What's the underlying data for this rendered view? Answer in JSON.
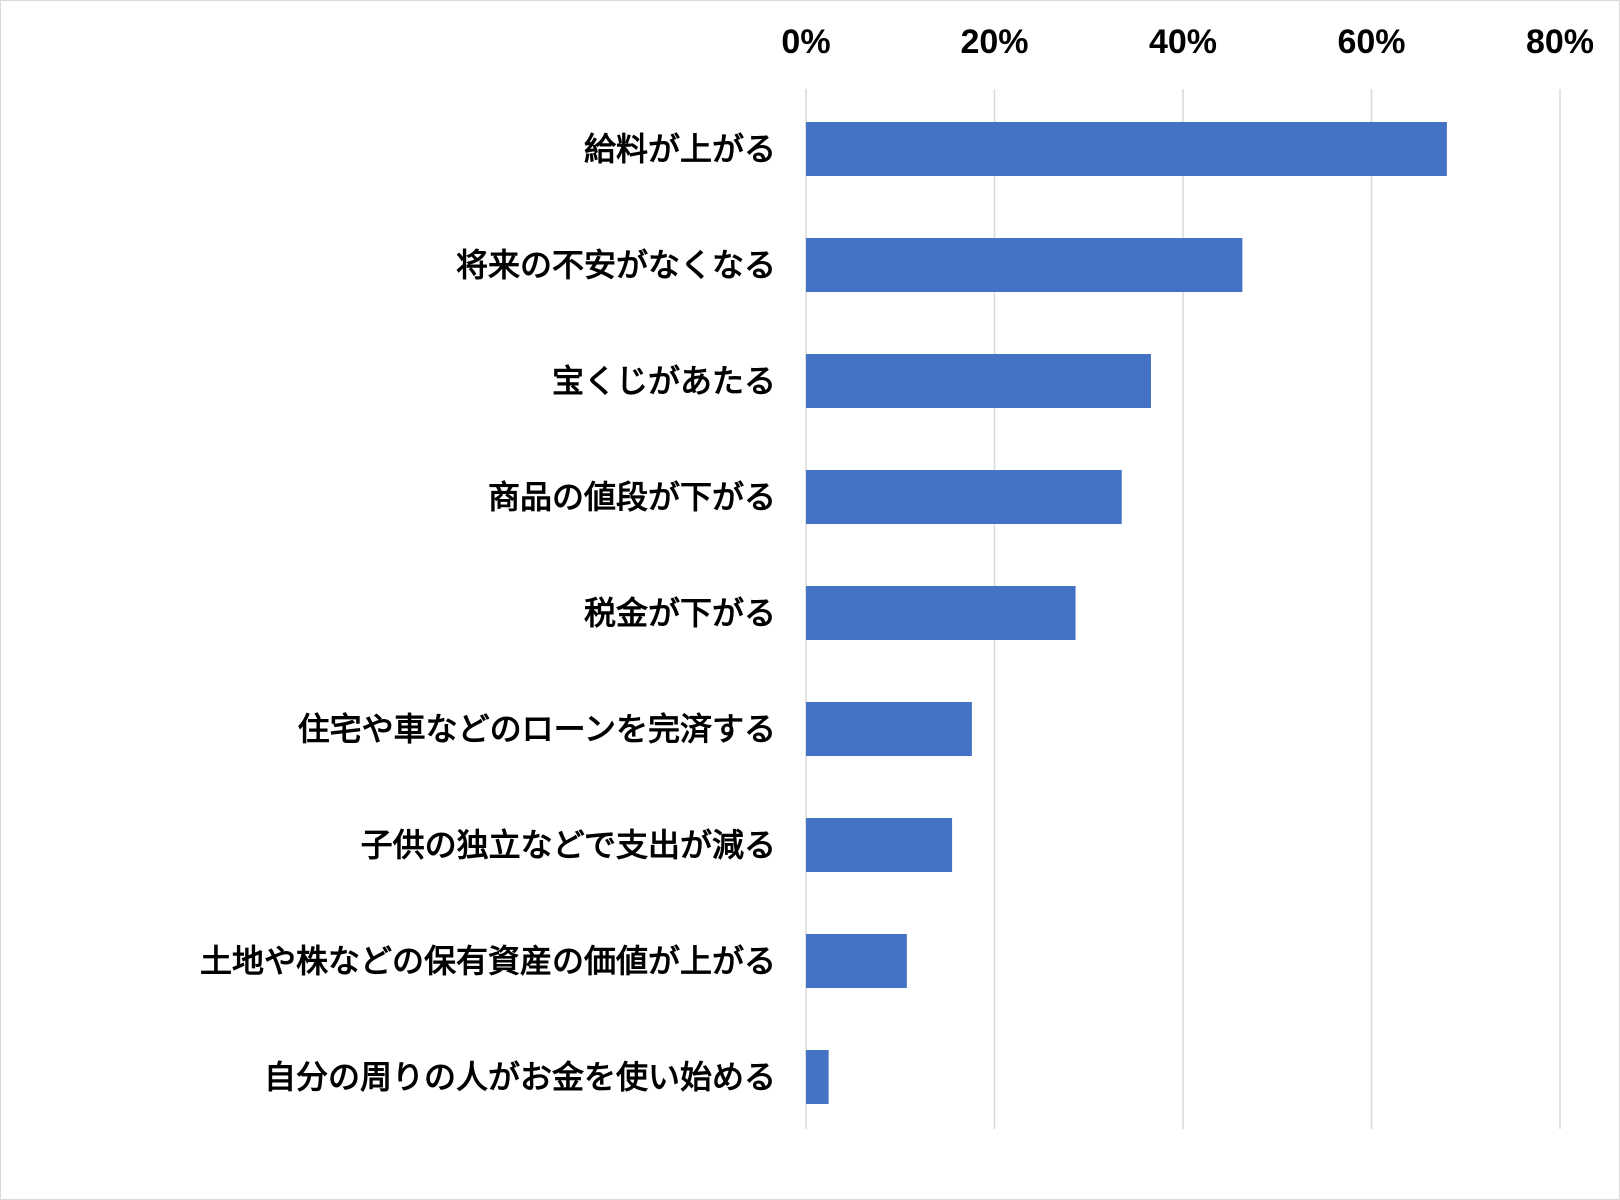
{
  "chart_data": {
    "type": "bar",
    "orientation": "horizontal",
    "title": "",
    "xlabel": "",
    "ylabel": "",
    "categories": [
      "給料が上がる",
      "将来の不安がなくなる",
      "宝くじがあたる",
      "商品の値段が下がる",
      "税金が下がる",
      "住宅や車などのローンを完済する",
      "子供の独立などで支出が減る",
      "土地や株などの保有資産の価値が上がる",
      "自分の周りの人がお金を使い始める"
    ],
    "values": [
      68,
      46.3,
      36.6,
      33.5,
      28.6,
      17.6,
      15.5,
      10.7,
      2.4
    ],
    "xlim": [
      0,
      80
    ],
    "xticks": [
      0,
      20,
      40,
      60,
      80
    ],
    "xtick_labels": [
      "0%",
      "20%",
      "40%",
      "60%",
      "80%"
    ],
    "x_axis_position": "top",
    "grid": true,
    "legend": "none",
    "bar_color": "#4472C4"
  }
}
